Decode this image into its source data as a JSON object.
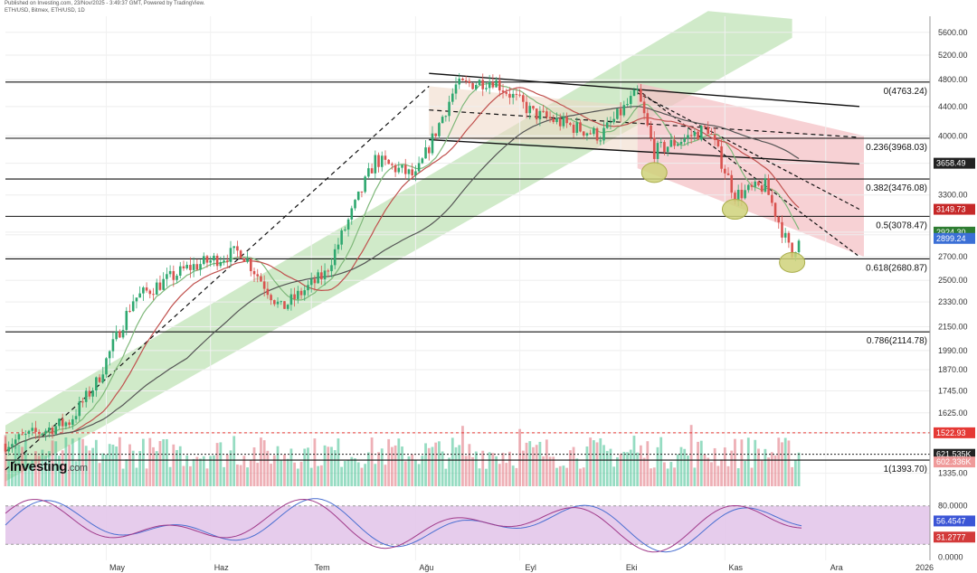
{
  "header": {
    "line1": "Published on Investing.com, 23/Nov/2025 - 3:49:37 GMT, Powered by TradingView.",
    "line2": "ETH/USD, Bitmex, ETH/USD, 1D"
  },
  "logo": {
    "text": "Investing",
    "suffix": ".com"
  },
  "chart_data": {
    "type": "candlestick",
    "price_axis": {
      "ticks": [
        "5600.00",
        "5200.00",
        "4800.00",
        "4400.00",
        "4000.00",
        "3658.49",
        "3300.00",
        "2924.30",
        "2899.24",
        "2700.00",
        "2500.00",
        "2330.00",
        "2150.00",
        "1990.00",
        "1870.00",
        "1745.00",
        "1625.00",
        "1522.93",
        "1335.00"
      ],
      "scale": "log",
      "range": [
        1280,
        5900
      ]
    },
    "time_axis": {
      "labels": [
        "May",
        "Haz",
        "Tem",
        "Ağu",
        "Eyl",
        "Eki",
        "Kas",
        "Ara",
        "2026"
      ],
      "range": [
        "2025-04-01",
        "2026-01-01"
      ]
    },
    "fibonacci": [
      {
        "label": "0(4763.24)",
        "price": 4763.24
      },
      {
        "label": "0.236(3968.03)",
        "price": 3968.03
      },
      {
        "label": "0.382(3476.08)",
        "price": 3476.08
      },
      {
        "label": "0.5(3078.47)",
        "price": 3078.47
      },
      {
        "label": "0.618(2680.87)",
        "price": 2680.87
      },
      {
        "label": "0.786(2114.78)",
        "price": 2114.78
      },
      {
        "label": "1(1393.70)",
        "price": 1393.7
      }
    ],
    "price_tags": [
      {
        "text": "3658.49",
        "price": 3658.49,
        "color": "#222222"
      },
      {
        "text": "3149.73",
        "price": 3149.73,
        "color": "#c62828"
      },
      {
        "text": "2924.30",
        "price": 2924.3,
        "color": "#2e7d32"
      },
      {
        "text": "2899.24",
        "price": 2899.24,
        "color": "#3b6fd6"
      }
    ],
    "volume_tags": [
      {
        "text": "1522.93",
        "level": 1522.93,
        "color": "#e53935"
      },
      {
        "text": "621.535K",
        "level": 1420,
        "color": "#222222"
      },
      {
        "text": "602.336K",
        "level": 1385,
        "color": "#ef9a9a"
      }
    ],
    "ohlc_keypoints": [
      {
        "date": "2025-04-01",
        "close": 1470
      },
      {
        "date": "2025-04-20",
        "close": 1580
      },
      {
        "date": "2025-04-28",
        "close": 1790
      },
      {
        "date": "2025-05-09",
        "close": 2350
      },
      {
        "date": "2025-05-25",
        "close": 2600
      },
      {
        "date": "2025-06-10",
        "close": 2750
      },
      {
        "date": "2025-06-22",
        "close": 2280
      },
      {
        "date": "2025-07-05",
        "close": 2550
      },
      {
        "date": "2025-07-20",
        "close": 3700
      },
      {
        "date": "2025-08-01",
        "close": 3500
      },
      {
        "date": "2025-08-13",
        "close": 4700
      },
      {
        "date": "2025-08-24",
        "close": 4800
      },
      {
        "date": "2025-09-05",
        "close": 4300
      },
      {
        "date": "2025-09-25",
        "close": 4000
      },
      {
        "date": "2025-10-06",
        "close": 4600
      },
      {
        "date": "2025-10-11",
        "close": 3800
      },
      {
        "date": "2025-10-27",
        "close": 4100
      },
      {
        "date": "2025-11-04",
        "close": 3300
      },
      {
        "date": "2025-11-13",
        "close": 3400
      },
      {
        "date": "2025-11-21",
        "close": 2700
      },
      {
        "date": "2025-11-23",
        "close": 2899
      }
    ],
    "stochastic": {
      "ticks": [
        "80.0000",
        "56.4547",
        "31.2777",
        "0.0000"
      ],
      "range": [
        -5,
        105
      ],
      "band": [
        20,
        80
      ]
    }
  },
  "colors": {
    "up": "#3fbf8f",
    "down": "#e0707a",
    "channel_green": "#c8e6c0",
    "channel_red": "#f4c2c6",
    "stoch_band": "#e3c7ea"
  }
}
